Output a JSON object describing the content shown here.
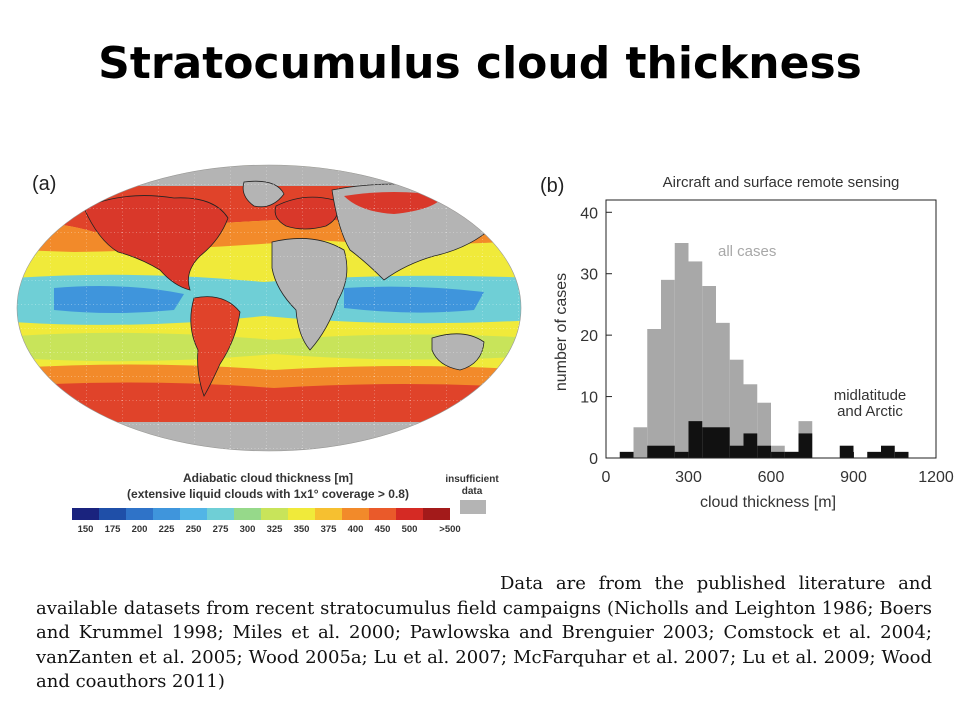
{
  "slide": {
    "title": "Stratocumulus cloud thickness",
    "caption": "Data are from the published literature and available datasets from recent stratocumulus field campaigns (Nicholls and Leighton 1986; Boers and Krummel 1998; Miles et al. 2000; Pawlowska and Brenguier 2003; Comstock et al. 2004; vanZanten et al. 2005; Wood 2005a; Lu et al. 2007; McFarquhar et al. 2007; Lu et al. 2009; Wood and coauthors 2011)"
  },
  "map": {
    "panel_label": "(a)",
    "colorbar_title": "Adiabatic cloud thickness [m]",
    "colorbar_subtitle": "(extensive liquid clouds with 1x1° coverage > 0.8)",
    "insufficient_label_1": "insufficient",
    "insufficient_label_2": "data",
    "colorbar_ticks": [
      "150",
      "175",
      "200",
      "225",
      "250",
      "275",
      "300",
      "325",
      "350",
      "375",
      "400",
      "450",
      "500",
      ">500"
    ],
    "colorbar_colors": [
      "#1a237e",
      "#1f4fa8",
      "#2f73c8",
      "#3f95dc",
      "#52b5e6",
      "#6fcfd6",
      "#96d98a",
      "#c8e45a",
      "#f0ea3a",
      "#f6c030",
      "#f28a2a",
      "#ea5a2a",
      "#d52a24",
      "#a31a1a"
    ],
    "insufficient_color": "#b4b4b4"
  },
  "chart_data": {
    "type": "bar",
    "panel_label": "(b)",
    "title": "Aircraft and surface remote sensing",
    "xlabel": "cloud thickness [m]",
    "ylabel": "number of cases",
    "xlim": [
      0,
      1200
    ],
    "ylim": [
      0,
      42
    ],
    "xticks": [
      0,
      300,
      600,
      900,
      1200
    ],
    "yticks": [
      0,
      10,
      20,
      30,
      40
    ],
    "bin_width": 50,
    "series": [
      {
        "name": "all cases",
        "color": "#a8a8a8",
        "bins": [
          {
            "x": 100,
            "y": 5
          },
          {
            "x": 150,
            "y": 21
          },
          {
            "x": 200,
            "y": 29
          },
          {
            "x": 250,
            "y": 35
          },
          {
            "x": 300,
            "y": 32
          },
          {
            "x": 350,
            "y": 28
          },
          {
            "x": 400,
            "y": 22
          },
          {
            "x": 450,
            "y": 16
          },
          {
            "x": 500,
            "y": 12
          },
          {
            "x": 550,
            "y": 9
          },
          {
            "x": 600,
            "y": 2
          },
          {
            "x": 650,
            "y": 1
          },
          {
            "x": 700,
            "y": 6
          }
        ]
      },
      {
        "name": "midlatitude and Arctic",
        "color": "#111111",
        "bins": [
          {
            "x": 50,
            "y": 1
          },
          {
            "x": 150,
            "y": 2
          },
          {
            "x": 200,
            "y": 2
          },
          {
            "x": 250,
            "y": 1
          },
          {
            "x": 300,
            "y": 6
          },
          {
            "x": 350,
            "y": 5
          },
          {
            "x": 400,
            "y": 5
          },
          {
            "x": 450,
            "y": 2
          },
          {
            "x": 500,
            "y": 4
          },
          {
            "x": 550,
            "y": 2
          },
          {
            "x": 600,
            "y": 1
          },
          {
            "x": 650,
            "y": 1
          },
          {
            "x": 700,
            "y": 4
          },
          {
            "x": 850,
            "y": 2
          },
          {
            "x": 950,
            "y": 1
          },
          {
            "x": 1000,
            "y": 2
          },
          {
            "x": 1050,
            "y": 1
          }
        ]
      }
    ],
    "annotations": {
      "all_cases": "all cases",
      "midlat_line1": "midlatitude",
      "midlat_line2": "and Arctic"
    }
  }
}
